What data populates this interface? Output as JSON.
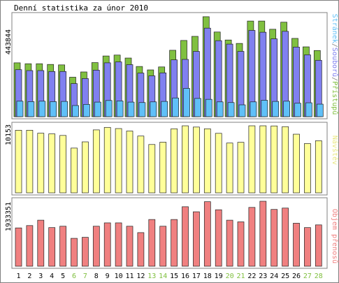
{
  "chart_data": [
    {
      "type": "bar",
      "title": "Denní statistika za únor 2010",
      "y_max_label": "443844",
      "ylabel_parts": [
        "Stránek",
        "/",
        "Souborů",
        "/",
        "Přístupů"
      ],
      "ylim": [
        0,
        443844
      ],
      "stacked": false,
      "categories": [
        "1",
        "2",
        "3",
        "4",
        "5",
        "6",
        "7",
        "8",
        "9",
        "10",
        "11",
        "12",
        "13",
        "14",
        "15",
        "16",
        "17",
        "18",
        "19",
        "20",
        "21",
        "22",
        "23",
        "24",
        "25",
        "26",
        "27",
        "28"
      ],
      "series": [
        {
          "name": "Přístupů",
          "color": "#80c040",
          "values": [
            236000,
            232000,
            232000,
            229000,
            227000,
            173000,
            196000,
            237000,
            266000,
            270000,
            257000,
            220000,
            205000,
            218000,
            291000,
            334000,
            352000,
            438000,
            371000,
            336000,
            321000,
            419000,
            419000,
            383000,
            414000,
            343000,
            306000,
            290000
          ]
        },
        {
          "name": "Souborů",
          "color": "#8080f0",
          "values": [
            206000,
            202000,
            202000,
            198000,
            198000,
            145000,
            167000,
            204000,
            236000,
            240000,
            228000,
            191000,
            179000,
            192000,
            249000,
            251000,
            286000,
            388000,
            333000,
            318000,
            286000,
            378000,
            370000,
            341000,
            374000,
            305000,
            271000,
            247000
          ]
        },
        {
          "name": "Stránek",
          "color": "#60c0f8",
          "values": [
            68000,
            66000,
            68000,
            66000,
            67000,
            49000,
            54000,
            64000,
            71000,
            69000,
            64000,
            62000,
            65000,
            67000,
            82000,
            124000,
            80000,
            76000,
            65000,
            62000,
            52000,
            65000,
            72000,
            67000,
            68000,
            59000,
            61000,
            55000
          ]
        }
      ]
    },
    {
      "type": "bar",
      "y_max_label": "10153",
      "ylabel": "Návštěv",
      "ylim": [
        0,
        10153
      ],
      "categories": [
        "1",
        "2",
        "3",
        "4",
        "5",
        "6",
        "7",
        "8",
        "9",
        "10",
        "11",
        "12",
        "13",
        "14",
        "15",
        "16",
        "17",
        "18",
        "19",
        "20",
        "21",
        "22",
        "23",
        "24",
        "25",
        "26",
        "27",
        "28"
      ],
      "series": [
        {
          "name": "Návštěv",
          "color": "#ffff99",
          "values": [
            9480,
            9480,
            9030,
            8930,
            8690,
            6780,
            7720,
            9530,
            9910,
            9730,
            9360,
            8600,
            7320,
            7670,
            9700,
            10150,
            9960,
            9700,
            9010,
            7540,
            7650,
            10150,
            10150,
            10130,
            10020,
            8880,
            7460,
            7890
          ]
        }
      ]
    },
    {
      "type": "bar",
      "y_max_label": "1933351",
      "ylabel": "Objem přenosů",
      "ylim": [
        0,
        1933351
      ],
      "categories": [
        "1",
        "2",
        "3",
        "4",
        "5",
        "6",
        "7",
        "8",
        "9",
        "10",
        "11",
        "12",
        "13",
        "14",
        "15",
        "16",
        "17",
        "18",
        "19",
        "20",
        "21",
        "22",
        "23",
        "24",
        "25",
        "26",
        "27",
        "28"
      ],
      "series": [
        {
          "name": "Objem přenosů",
          "color": "#f08080",
          "values": [
            1140000,
            1210000,
            1370000,
            1150000,
            1190000,
            830000,
            860000,
            1190000,
            1290000,
            1290000,
            1190000,
            1000000,
            1390000,
            1190000,
            1390000,
            1770000,
            1620000,
            1920000,
            1680000,
            1370000,
            1320000,
            1750000,
            1933351,
            1690000,
            1730000,
            1280000,
            1150000,
            1230000
          ]
        }
      ]
    }
  ],
  "weekend_days": [
    "6",
    "7",
    "13",
    "14",
    "20",
    "21",
    "27",
    "28"
  ],
  "colors": {
    "weekday_label": "#000000",
    "weekend_label": "#80c040",
    "panel_border": "#808080",
    "bar_outline": "#202020",
    "label_hits": "#80c040",
    "label_files": "#8080f0",
    "label_pages": "#60c0f8",
    "label_separator": "#808080",
    "label_visits": "#e8e880",
    "label_bandwidth": "#f08080"
  }
}
